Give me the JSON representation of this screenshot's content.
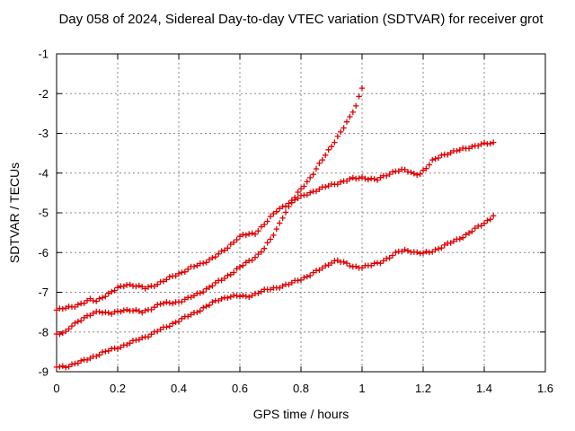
{
  "chart_data": {
    "type": "scatter",
    "title": "Day 058 of 2024, Sidereal Day-to-day VTEC variation (SDTVAR) for receiver grot",
    "xlabel": "GPS time / hours",
    "ylabel": "SDTVAR / TECUs",
    "xlim": [
      0,
      1.6
    ],
    "ylim": [
      -9,
      -1
    ],
    "grid": true,
    "legend": "none",
    "marker": "plus",
    "marker_step_hours": 0.01,
    "colors": {
      "series": "#e00000",
      "grid": "#888888",
      "frame": "#000000",
      "text": "#000000",
      "background": "#ffffff"
    },
    "x_ticks": {
      "values": [
        0,
        0.2,
        0.4,
        0.6,
        0.8,
        1,
        1.2,
        1.4,
        1.6
      ],
      "labels": [
        "0",
        "0.2",
        "0.4",
        "0.6",
        "0.8",
        "1",
        "1.2",
        "1.4",
        "1.6"
      ]
    },
    "y_ticks": {
      "values": [
        -1,
        -2,
        -3,
        -4,
        -5,
        -6,
        -7,
        -8,
        -9
      ],
      "labels": [
        "-1",
        "-2",
        "-3",
        "-4",
        "-5",
        "-6",
        "-7",
        "-8",
        "-9"
      ]
    },
    "series": [
      {
        "name": "upper-curve",
        "points": [
          [
            0,
            -7.45
          ],
          [
            0.03,
            -7.4
          ],
          [
            0.06,
            -7.34
          ],
          [
            0.09,
            -7.26
          ],
          [
            0.11,
            -7.19
          ],
          [
            0.13,
            -7.22
          ],
          [
            0.15,
            -7.12
          ],
          [
            0.18,
            -7.0
          ],
          [
            0.2,
            -6.9
          ],
          [
            0.23,
            -6.8
          ],
          [
            0.26,
            -6.84
          ],
          [
            0.29,
            -6.9
          ],
          [
            0.32,
            -6.82
          ],
          [
            0.35,
            -6.72
          ],
          [
            0.38,
            -6.6
          ],
          [
            0.41,
            -6.5
          ],
          [
            0.44,
            -6.38
          ],
          [
            0.47,
            -6.3
          ],
          [
            0.5,
            -6.18
          ],
          [
            0.53,
            -6.05
          ],
          [
            0.56,
            -5.88
          ],
          [
            0.59,
            -5.65
          ],
          [
            0.61,
            -5.56
          ],
          [
            0.63,
            -5.55
          ],
          [
            0.65,
            -5.52
          ],
          [
            0.68,
            -5.28
          ],
          [
            0.7,
            -5.12
          ],
          [
            0.72,
            -4.96
          ],
          [
            0.74,
            -4.85
          ],
          [
            0.77,
            -4.7
          ],
          [
            0.8,
            -4.6
          ],
          [
            0.84,
            -4.46
          ],
          [
            0.88,
            -4.35
          ],
          [
            0.92,
            -4.25
          ],
          [
            0.96,
            -4.16
          ],
          [
            1.0,
            -4.11
          ],
          [
            1.03,
            -4.15
          ],
          [
            1.05,
            -4.17
          ],
          [
            1.08,
            -4.05
          ],
          [
            1.11,
            -3.94
          ],
          [
            1.14,
            -3.93
          ],
          [
            1.17,
            -4.02
          ],
          [
            1.19,
            -4.01
          ],
          [
            1.21,
            -3.88
          ],
          [
            1.23,
            -3.7
          ],
          [
            1.26,
            -3.55
          ],
          [
            1.29,
            -3.49
          ],
          [
            1.32,
            -3.42
          ],
          [
            1.35,
            -3.35
          ],
          [
            1.38,
            -3.3
          ],
          [
            1.41,
            -3.26
          ],
          [
            1.43,
            -3.24
          ]
        ]
      },
      {
        "name": "steep-curve",
        "points": [
          [
            0,
            -8.08
          ],
          [
            0.03,
            -8.0
          ],
          [
            0.05,
            -7.82
          ],
          [
            0.08,
            -7.7
          ],
          [
            0.1,
            -7.62
          ],
          [
            0.12,
            -7.52
          ],
          [
            0.14,
            -7.47
          ],
          [
            0.16,
            -7.52
          ],
          [
            0.18,
            -7.54
          ],
          [
            0.2,
            -7.49
          ],
          [
            0.22,
            -7.44
          ],
          [
            0.25,
            -7.46
          ],
          [
            0.28,
            -7.5
          ],
          [
            0.3,
            -7.44
          ],
          [
            0.32,
            -7.37
          ],
          [
            0.34,
            -7.29
          ],
          [
            0.37,
            -7.27
          ],
          [
            0.4,
            -7.24
          ],
          [
            0.43,
            -7.16
          ],
          [
            0.46,
            -7.05
          ],
          [
            0.49,
            -6.92
          ],
          [
            0.52,
            -6.78
          ],
          [
            0.55,
            -6.64
          ],
          [
            0.58,
            -6.48
          ],
          [
            0.61,
            -6.32
          ],
          [
            0.64,
            -6.17
          ],
          [
            0.66,
            -6.05
          ],
          [
            0.68,
            -5.89
          ],
          [
            0.7,
            -5.68
          ],
          [
            0.72,
            -5.42
          ],
          [
            0.74,
            -5.1
          ],
          [
            0.76,
            -4.86
          ],
          [
            0.78,
            -4.62
          ],
          [
            0.8,
            -4.4
          ],
          [
            0.82,
            -4.22
          ],
          [
            0.85,
            -3.9
          ],
          [
            0.88,
            -3.55
          ],
          [
            0.91,
            -3.2
          ],
          [
            0.94,
            -2.85
          ],
          [
            0.96,
            -2.61
          ],
          [
            0.98,
            -2.3
          ],
          [
            0.99,
            -2.08
          ],
          [
            1.0,
            -1.84
          ]
        ]
      },
      {
        "name": "lower-curve",
        "points": [
          [
            0,
            -8.88
          ],
          [
            0.03,
            -8.87
          ],
          [
            0.06,
            -8.8
          ],
          [
            0.09,
            -8.72
          ],
          [
            0.12,
            -8.62
          ],
          [
            0.15,
            -8.53
          ],
          [
            0.18,
            -8.44
          ],
          [
            0.21,
            -8.37
          ],
          [
            0.24,
            -8.28
          ],
          [
            0.27,
            -8.18
          ],
          [
            0.3,
            -8.09
          ],
          [
            0.33,
            -7.98
          ],
          [
            0.36,
            -7.87
          ],
          [
            0.39,
            -7.75
          ],
          [
            0.42,
            -7.64
          ],
          [
            0.45,
            -7.53
          ],
          [
            0.48,
            -7.4
          ],
          [
            0.51,
            -7.27
          ],
          [
            0.54,
            -7.16
          ],
          [
            0.57,
            -7.1
          ],
          [
            0.6,
            -7.1
          ],
          [
            0.62,
            -7.11
          ],
          [
            0.64,
            -7.07
          ],
          [
            0.67,
            -6.98
          ],
          [
            0.7,
            -6.92
          ],
          [
            0.73,
            -6.86
          ],
          [
            0.76,
            -6.8
          ],
          [
            0.79,
            -6.7
          ],
          [
            0.82,
            -6.6
          ],
          [
            0.85,
            -6.48
          ],
          [
            0.88,
            -6.35
          ],
          [
            0.9,
            -6.24
          ],
          [
            0.92,
            -6.2
          ],
          [
            0.94,
            -6.26
          ],
          [
            0.97,
            -6.35
          ],
          [
            1.0,
            -6.37
          ],
          [
            1.03,
            -6.32
          ],
          [
            1.06,
            -6.24
          ],
          [
            1.09,
            -6.12
          ],
          [
            1.12,
            -5.98
          ],
          [
            1.14,
            -5.94
          ],
          [
            1.16,
            -5.96
          ],
          [
            1.18,
            -6.01
          ],
          [
            1.2,
            -6.02
          ],
          [
            1.22,
            -5.99
          ],
          [
            1.25,
            -5.9
          ],
          [
            1.28,
            -5.79
          ],
          [
            1.31,
            -5.68
          ],
          [
            1.34,
            -5.56
          ],
          [
            1.37,
            -5.41
          ],
          [
            1.4,
            -5.26
          ],
          [
            1.42,
            -5.14
          ],
          [
            1.43,
            -5.06
          ]
        ]
      }
    ]
  }
}
